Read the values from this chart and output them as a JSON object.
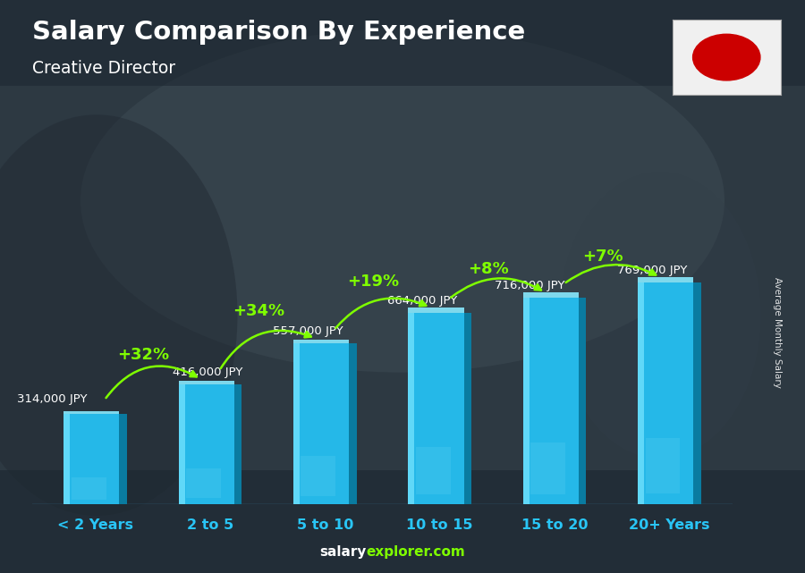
{
  "title": "Salary Comparison By Experience",
  "subtitle": "Creative Director",
  "categories": [
    "< 2 Years",
    "2 to 5",
    "5 to 10",
    "10 to 15",
    "15 to 20",
    "20+ Years"
  ],
  "values": [
    314000,
    416000,
    557000,
    664000,
    716000,
    769000
  ],
  "labels": [
    "314,000 JPY",
    "416,000 JPY",
    "557,000 JPY",
    "664,000 JPY",
    "716,000 JPY",
    "769,000 JPY"
  ],
  "pct_changes": [
    "+32%",
    "+34%",
    "+19%",
    "+8%",
    "+7%"
  ],
  "bar_face_color": "#29c5f6",
  "bar_right_color": "#1a7fa0",
  "bar_top_color": "#5dd8f8",
  "title_color": "#ffffff",
  "subtitle_color": "#ffffff",
  "label_color": "#ffffff",
  "pct_color": "#7fff00",
  "xlabel_color": "#29c5f6",
  "footer_salary": "salary",
  "footer_explorer": "explorer.com",
  "ylabel_text": "Average Monthly Salary",
  "bg_color": "#3a4a55"
}
